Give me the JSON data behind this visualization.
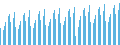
{
  "values": [
    68,
    62,
    65,
    72,
    78,
    82,
    88,
    92,
    78,
    72,
    85,
    95,
    70,
    64,
    67,
    74,
    80,
    84,
    90,
    94,
    80,
    74,
    87,
    98,
    72,
    66,
    69,
    76,
    82,
    86,
    92,
    96,
    82,
    76,
    89,
    100,
    74,
    68,
    71,
    78,
    84,
    88,
    94,
    98,
    84,
    78,
    91,
    102,
    76,
    70,
    73,
    80,
    86,
    90,
    96,
    100,
    86,
    80,
    93,
    104,
    55,
    45,
    70,
    82,
    88,
    92,
    98,
    102,
    88,
    82,
    95,
    106,
    78,
    74,
    77,
    84,
    90,
    94,
    100,
    104,
    90,
    84,
    97,
    108,
    80,
    76,
    79,
    86,
    92,
    96,
    102,
    106,
    92,
    86,
    99,
    110
  ],
  "bar_color": "#5ab4e0",
  "background_color": "#ffffff",
  "ylim_min": 40,
  "ylim_max": 115,
  "bar_width": 0.6
}
